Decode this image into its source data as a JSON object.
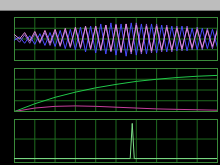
{
  "chart_data": [
    {
      "type": "line",
      "grid": true,
      "tick_labels": false,
      "xlim": [
        0,
        100
      ],
      "xticks": [
        0,
        10,
        20,
        30,
        40,
        50,
        60,
        70,
        80,
        90,
        100
      ],
      "ylim": [
        -1,
        1
      ],
      "yticks": [
        -1,
        -0.5,
        0,
        0.5,
        1
      ],
      "x": [
        0,
        2.5,
        5,
        7.5,
        10,
        12.5,
        15,
        17.5,
        20,
        22.5,
        25,
        27.5,
        30,
        32.5,
        35,
        37.5,
        40,
        42.5,
        45,
        47.5,
        50,
        52.5,
        55,
        57.5,
        60,
        62.5,
        65,
        67.5,
        70,
        72.5,
        75,
        77.5,
        80,
        82.5,
        85,
        87.5,
        90,
        92.5,
        95,
        97.5,
        100
      ],
      "series": [
        {
          "color": "#8a5cd0",
          "values": [
            0.1,
            -0.15,
            0.2,
            -0.2,
            0.25,
            -0.2,
            0.3,
            -0.3,
            0.35,
            -0.35,
            0.4,
            -0.4,
            0.5,
            -0.45,
            0.55,
            -0.5,
            0.6,
            -0.55,
            0.65,
            -0.6,
            0.7,
            -0.65,
            0.7,
            -0.7,
            0.75,
            -0.7,
            0.7,
            -0.65,
            0.7,
            -0.6,
            0.65,
            -0.6,
            0.6,
            -0.55,
            0.6,
            -0.5,
            0.55,
            -0.5,
            0.5,
            -0.45,
            0.5
          ]
        },
        {
          "color": "#4a4aff",
          "values": [
            -0.05,
            0.1,
            -0.2,
            0.15,
            -0.25,
            0.25,
            -0.3,
            0.3,
            -0.35,
            0.4,
            -0.45,
            0.45,
            -0.5,
            0.55,
            -0.6,
            0.6,
            -0.65,
            0.7,
            -0.7,
            0.75,
            -0.75,
            0.7,
            -0.8,
            0.75,
            -0.75,
            0.7,
            -0.7,
            0.7,
            -0.65,
            0.65,
            -0.6,
            0.6,
            -0.55,
            0.6,
            -0.55,
            0.5,
            -0.5,
            0.5,
            -0.45,
            0.45,
            -0.4
          ]
        },
        {
          "color": "#e08ad8",
          "values": [
            0.2,
            0.0,
            0.3,
            -0.1,
            0.35,
            -0.15,
            0.4,
            -0.2,
            0.45,
            -0.3,
            0.5,
            -0.35,
            0.55,
            -0.4,
            0.6,
            -0.45,
            0.6,
            -0.5,
            0.65,
            -0.55,
            0.65,
            -0.6,
            0.7,
            -0.6,
            0.65,
            -0.6,
            0.6,
            -0.55,
            0.6,
            -0.5,
            0.55,
            -0.5,
            0.5,
            -0.45,
            0.5,
            -0.4,
            0.45,
            -0.4,
            0.4,
            -0.35,
            0.4
          ]
        }
      ]
    },
    {
      "type": "line",
      "grid": true,
      "tick_labels": false,
      "xlim": [
        0,
        100
      ],
      "xticks": [
        0,
        10,
        20,
        30,
        40,
        50,
        60,
        70,
        80,
        90,
        100
      ],
      "ylim": [
        0,
        1
      ],
      "yticks": [
        0,
        0.25,
        0.5,
        0.75,
        1
      ],
      "x": [
        0,
        10,
        20,
        30,
        40,
        50,
        60,
        70,
        80,
        90,
        100
      ],
      "series": [
        {
          "color": "#22c84a",
          "values": [
            0,
            0.18,
            0.33,
            0.45,
            0.55,
            0.63,
            0.7,
            0.75,
            0.79,
            0.82,
            0.84
          ]
        },
        {
          "color": "#c8409e",
          "values": [
            0,
            0.08,
            0.12,
            0.13,
            0.12,
            0.1,
            0.08,
            0.06,
            0.05,
            0.04,
            0.03
          ]
        }
      ]
    },
    {
      "type": "line",
      "grid": true,
      "tick_labels": false,
      "xlim": [
        0,
        100
      ],
      "xticks": [
        0,
        10,
        20,
        30,
        40,
        50,
        60,
        70,
        80,
        90,
        100
      ],
      "ylim": [
        -0.1,
        1
      ],
      "yticks": [
        0,
        0.5,
        1
      ],
      "x": [
        0,
        57,
        58,
        59,
        100
      ],
      "series": [
        {
          "color": "#7fe08a",
          "values": [
            0,
            0,
            0.9,
            0,
            0
          ]
        }
      ]
    }
  ]
}
